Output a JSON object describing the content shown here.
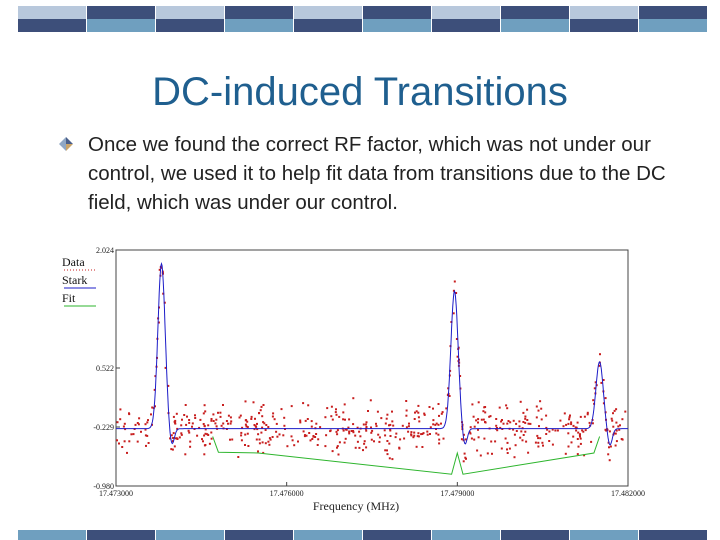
{
  "slide": {
    "title": "DC-induced Transitions",
    "bullet_text": "Once we found the correct RF factor, which was not under our control, we used it to help fit data from transitions due to the DC field, which was under our control.",
    "colors": {
      "title": "#1f5f8f",
      "band_dark": "#3d4f7a",
      "band_light": "#b8c8dc",
      "band_mid": "#6f9fbf"
    }
  },
  "chart_data": {
    "type": "scatter",
    "xlabel": "Frequency (MHz)",
    "ylabel": "",
    "xlim": [
      17.473,
      17.482
    ],
    "ylim": [
      -0.98,
      2.024
    ],
    "x_ticks": [
      "17.473000",
      "17.476000",
      "17.479000",
      "17.482000"
    ],
    "y_ticks": [
      "2.024",
      "0.522",
      "-0.229",
      "-0.980"
    ],
    "legend": [
      "Data",
      "Stark",
      "Fit"
    ],
    "series": [
      {
        "name": "Data",
        "style": "red scattered points",
        "baseline": -0.2,
        "noise": 0.25
      },
      {
        "name": "Stark",
        "style": "blue line",
        "baseline": -0.25,
        "peaks": [
          {
            "x": 17.4738,
            "y": 1.85
          },
          {
            "x": 17.47895,
            "y": 1.5
          },
          {
            "x": 17.4815,
            "y": 0.6
          }
        ]
      },
      {
        "name": "Fit",
        "style": "green line",
        "points": [
          [
            17.4747,
            -0.35
          ],
          [
            17.4748,
            -0.55
          ],
          [
            17.4755,
            -0.56
          ],
          [
            17.4789,
            -0.83
          ],
          [
            17.479,
            -0.56
          ],
          [
            17.4791,
            -0.83
          ],
          [
            17.4814,
            -0.56
          ],
          [
            17.4815,
            -0.35
          ]
        ]
      }
    ]
  }
}
